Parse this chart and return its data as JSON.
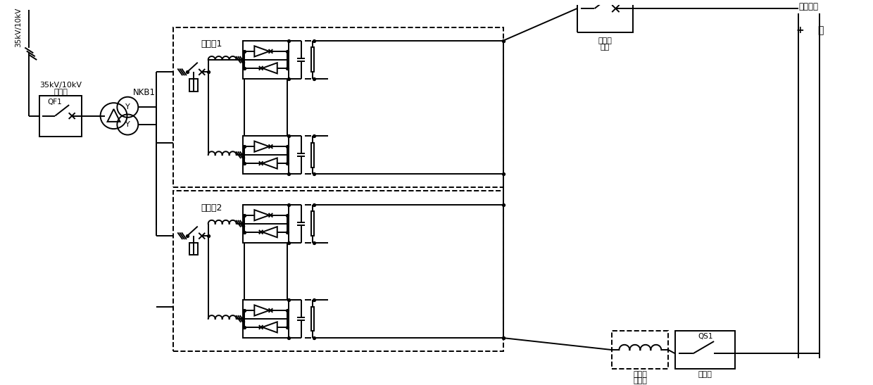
{
  "bg": "#ffffff",
  "lc": "#000000",
  "lw": 1.4,
  "figsize": [
    12.4,
    5.47
  ],
  "dpi": 100,
  "labels": {
    "grid_text": "35kV/10kV",
    "switch_cab1": "35kV/10kV",
    "switch_cab2": "开关柜",
    "qf1": "QF1",
    "nkb1": "NKB1",
    "inv1": "逆变柜1",
    "inv2": "逆变柜2",
    "dc_sw1": "直流开",
    "dc_sw2": "关柜",
    "dc_reactor1": "直流电",
    "dc_reactor2": "抗器柜",
    "neg_cab": "负极柜",
    "qs1": "QS1",
    "dc_grid": "直流电网",
    "plus": "+",
    "minus": "－",
    "delta": "△",
    "y": "Y"
  }
}
